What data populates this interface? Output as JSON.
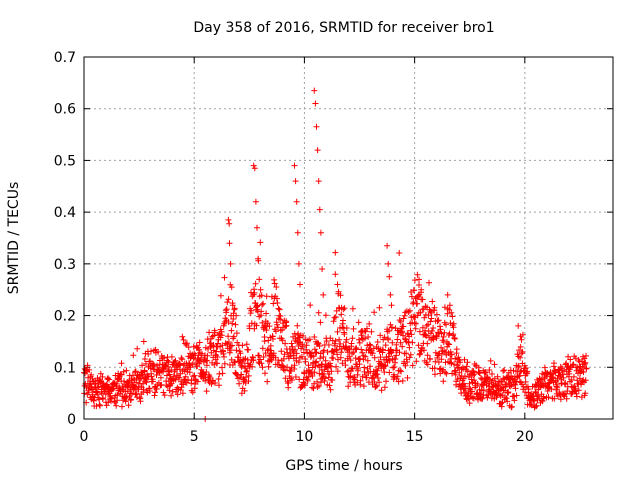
{
  "chart_data": {
    "type": "scatter",
    "title": "Day 358 of 2016, SRMTID for receiver bro1",
    "xlabel": "GPS time / hours",
    "ylabel": "SRMTID / TECUs",
    "xlim": [
      0,
      24
    ],
    "ylim": [
      0,
      0.7
    ],
    "xticks": [
      0,
      5,
      10,
      15,
      20
    ],
    "xtick_labels": [
      "0",
      "5",
      "10",
      "15",
      "20"
    ],
    "yticks": [
      0,
      0.1,
      0.2,
      0.3,
      0.4,
      0.5,
      0.6,
      0.7
    ],
    "ytick_labels": [
      "0",
      "0.1",
      "0.2",
      "0.3",
      "0.4",
      "0.5",
      "0.6",
      "0.7"
    ],
    "grid": true,
    "marker": "+",
    "colors": {
      "series": "#ff0000",
      "axis": "#000000",
      "grid": "#a0a0a0"
    },
    "series": [
      {
        "name": "SRMTID bro1",
        "anchors": [
          [
            0.0,
            0.07
          ],
          [
            0.5,
            0.06
          ],
          [
            1.0,
            0.055
          ],
          [
            1.5,
            0.055
          ],
          [
            2.0,
            0.06
          ],
          [
            2.5,
            0.07
          ],
          [
            3.0,
            0.09
          ],
          [
            3.5,
            0.09
          ],
          [
            4.0,
            0.085
          ],
          [
            4.5,
            0.095
          ],
          [
            5.0,
            0.1
          ],
          [
            5.5,
            0.105
          ],
          [
            6.0,
            0.12
          ],
          [
            6.4,
            0.15
          ],
          [
            6.7,
            0.19
          ],
          [
            7.0,
            0.11
          ],
          [
            7.3,
            0.09
          ],
          [
            7.6,
            0.17
          ],
          [
            7.9,
            0.2
          ],
          [
            8.2,
            0.13
          ],
          [
            8.6,
            0.19
          ],
          [
            9.0,
            0.15
          ],
          [
            9.3,
            0.11
          ],
          [
            9.6,
            0.13
          ],
          [
            10.0,
            0.1
          ],
          [
            10.4,
            0.12
          ],
          [
            10.8,
            0.09
          ],
          [
            11.2,
            0.12
          ],
          [
            11.6,
            0.18
          ],
          [
            12.0,
            0.12
          ],
          [
            12.4,
            0.13
          ],
          [
            12.8,
            0.12
          ],
          [
            13.2,
            0.1
          ],
          [
            13.6,
            0.12
          ],
          [
            14.0,
            0.13
          ],
          [
            14.5,
            0.14
          ],
          [
            15.0,
            0.19
          ],
          [
            15.4,
            0.18
          ],
          [
            15.8,
            0.16
          ],
          [
            16.2,
            0.12
          ],
          [
            16.6,
            0.16
          ],
          [
            17.0,
            0.08
          ],
          [
            17.5,
            0.07
          ],
          [
            18.0,
            0.07
          ],
          [
            18.5,
            0.06
          ],
          [
            19.0,
            0.05
          ],
          [
            19.5,
            0.06
          ],
          [
            19.9,
            0.12
          ],
          [
            20.2,
            0.04
          ],
          [
            20.6,
            0.05
          ],
          [
            21.0,
            0.07
          ],
          [
            21.5,
            0.07
          ],
          [
            22.0,
            0.08
          ],
          [
            22.5,
            0.08
          ],
          [
            22.8,
            0.09
          ]
        ],
        "spikes": [
          [
            6.55,
            0.385
          ],
          [
            6.6,
            0.34
          ],
          [
            6.65,
            0.3
          ],
          [
            6.7,
            0.255
          ],
          [
            6.75,
            0.22
          ],
          [
            7.7,
            0.49
          ],
          [
            7.75,
            0.485
          ],
          [
            7.8,
            0.42
          ],
          [
            7.85,
            0.37
          ],
          [
            7.9,
            0.31
          ],
          [
            7.95,
            0.27
          ],
          [
            9.55,
            0.49
          ],
          [
            9.6,
            0.46
          ],
          [
            9.65,
            0.42
          ],
          [
            9.7,
            0.36
          ],
          [
            9.75,
            0.3
          ],
          [
            9.8,
            0.26
          ],
          [
            10.45,
            0.635
          ],
          [
            10.5,
            0.61
          ],
          [
            10.55,
            0.565
          ],
          [
            10.6,
            0.52
          ],
          [
            10.65,
            0.46
          ],
          [
            10.7,
            0.405
          ],
          [
            10.75,
            0.36
          ],
          [
            10.8,
            0.29
          ],
          [
            10.85,
            0.24
          ],
          [
            11.4,
            0.28
          ],
          [
            11.5,
            0.26
          ],
          [
            13.75,
            0.335
          ],
          [
            13.8,
            0.3
          ],
          [
            13.85,
            0.275
          ],
          [
            13.9,
            0.24
          ],
          [
            13.95,
            0.22
          ],
          [
            15.2,
            0.27
          ],
          [
            15.3,
            0.25
          ],
          [
            16.5,
            0.24
          ],
          [
            16.6,
            0.22
          ],
          [
            19.7,
            0.18
          ],
          [
            19.8,
            0.16
          ],
          [
            5.5,
            0.0
          ]
        ],
        "x_end": 22.8,
        "sample_step_hours": 0.0125
      }
    ]
  }
}
